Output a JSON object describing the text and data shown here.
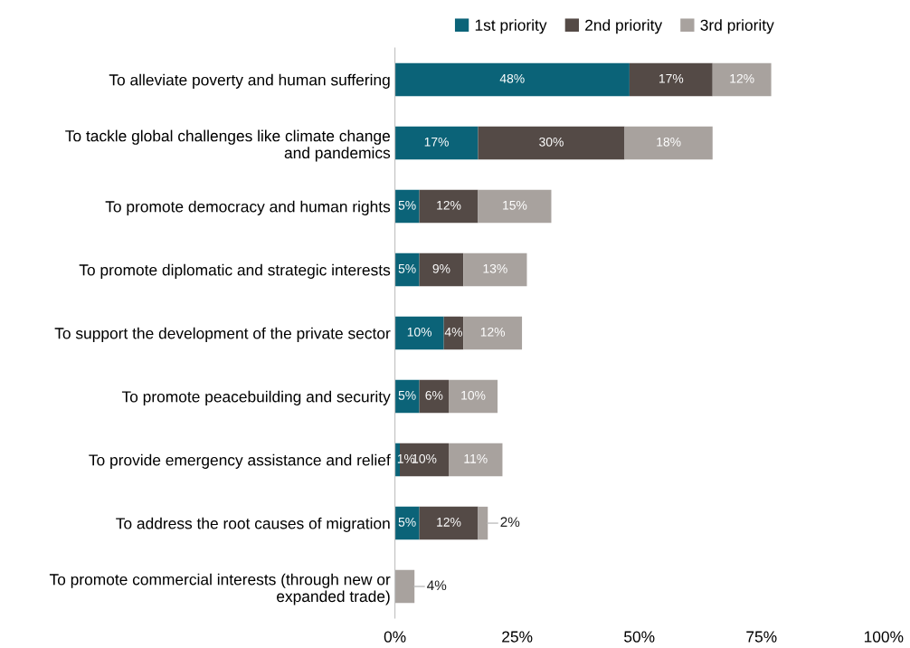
{
  "chart_data": {
    "type": "bar",
    "orientation": "horizontal",
    "stacked": true,
    "legend": "top",
    "grid": false,
    "categories": [
      "To alleviate poverty and human suffering",
      "To tackle global challenges like climate change\nand pandemics",
      "To promote democracy and human rights",
      "To promote diplomatic and strategic interests",
      "To support the development of the private sector",
      "To promote peacebuilding and security",
      "To provide emergency assistance and relief",
      "To address the root causes of migration",
      "To promote commercial interests (through new or\nexpanded trade)"
    ],
    "series": [
      {
        "name": "1st priority",
        "color": "#0b6378",
        "values": [
          48,
          17,
          5,
          5,
          10,
          5,
          1,
          5,
          null
        ],
        "value_labels": [
          "48%",
          "17%",
          "5%",
          "5%",
          "10%",
          "5%",
          "1%",
          "5%",
          null
        ]
      },
      {
        "name": "2nd priority",
        "color": "#544a46",
        "values": [
          17,
          30,
          12,
          9,
          4,
          6,
          10,
          12,
          null
        ],
        "value_labels": [
          "17%",
          "30%",
          "12%",
          "9%",
          "4%",
          "6%",
          "10%",
          "12%",
          null
        ]
      },
      {
        "name": "3rd priority",
        "color": "#a8a29e",
        "values": [
          12,
          18,
          15,
          13,
          12,
          10,
          11,
          2,
          4
        ],
        "value_labels": [
          "12%",
          "18%",
          "15%",
          "13%",
          "12%",
          "10%",
          "11%",
          "2%",
          "4%"
        ]
      }
    ],
    "xlim": [
      0,
      100
    ],
    "xticks": [
      {
        "value": 0,
        "label": "0%"
      },
      {
        "value": 25,
        "label": "25%"
      },
      {
        "value": 50,
        "label": "50%"
      },
      {
        "value": 75,
        "label": "75%"
      },
      {
        "value": 100,
        "label": "100%"
      }
    ]
  }
}
